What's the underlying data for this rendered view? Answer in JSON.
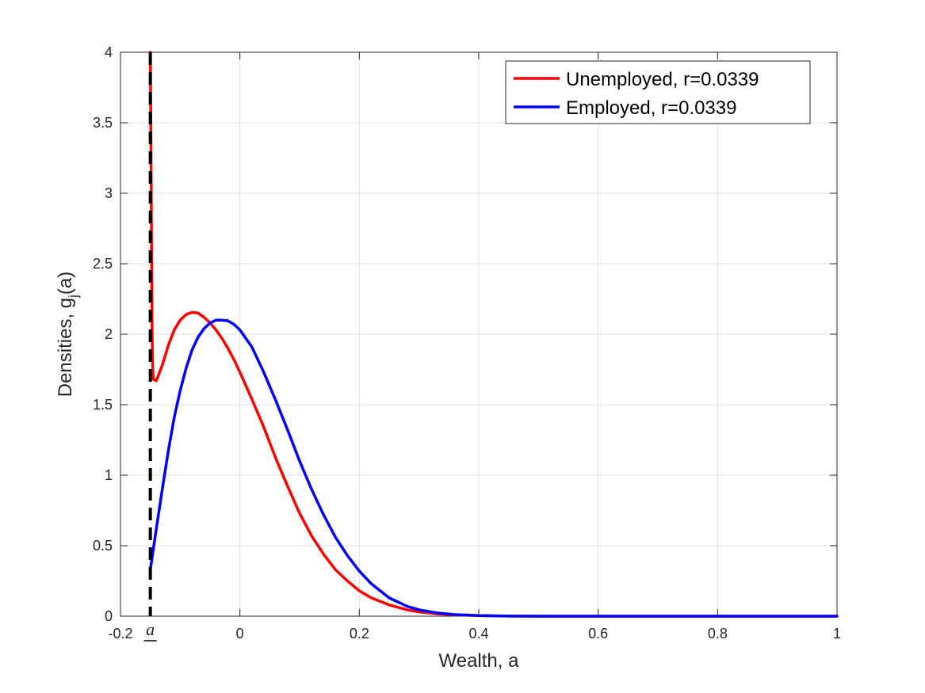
{
  "chart_data": {
    "type": "line",
    "title": "",
    "xlabel": "Wealth, a",
    "ylabel_main": "Densities, g",
    "ylabel_sub": "j",
    "ylabel_tail": "(a)",
    "xlim": [
      -0.2,
      1
    ],
    "ylim": [
      0,
      4
    ],
    "xticks": [
      -0.2,
      0,
      0.2,
      0.4,
      0.6,
      0.8,
      1
    ],
    "xtick_labels": [
      "-0.2",
      "0",
      "0.2",
      "0.4",
      "0.6",
      "0.8",
      "1"
    ],
    "yticks": [
      0,
      0.5,
      1,
      1.5,
      2,
      2.5,
      3,
      3.5,
      4
    ],
    "ytick_labels": [
      "0",
      "0.5",
      "1",
      "1.5",
      "2",
      "2.5",
      "3",
      "3.5",
      "4"
    ],
    "grid": true,
    "legend_position": "top-right",
    "borrowing_limit": {
      "x": -0.15,
      "label": "a",
      "style": "dashed",
      "color": "#000000"
    },
    "series": [
      {
        "name": "Unemployed, r=0.0339",
        "color": "#ff0000",
        "x": [
          -0.15,
          -0.149,
          -0.148,
          -0.147,
          -0.146,
          -0.145,
          -0.14,
          -0.13,
          -0.12,
          -0.11,
          -0.1,
          -0.09,
          -0.08,
          -0.07,
          -0.06,
          -0.05,
          -0.04,
          -0.03,
          -0.02,
          -0.01,
          0.0,
          0.02,
          0.04,
          0.06,
          0.08,
          0.1,
          0.12,
          0.14,
          0.16,
          0.18,
          0.2,
          0.22,
          0.25,
          0.28,
          0.3,
          0.33,
          0.36,
          0.4,
          0.45,
          0.5,
          0.6,
          0.7,
          0.8,
          0.9,
          1.0
        ],
        "y": [
          4.0,
          3.4,
          2.6,
          2.0,
          1.75,
          1.68,
          1.67,
          1.78,
          1.92,
          2.03,
          2.1,
          2.14,
          2.155,
          2.15,
          2.12,
          2.08,
          2.03,
          1.97,
          1.9,
          1.82,
          1.73,
          1.54,
          1.34,
          1.12,
          0.92,
          0.73,
          0.57,
          0.44,
          0.33,
          0.25,
          0.18,
          0.13,
          0.08,
          0.045,
          0.03,
          0.017,
          0.009,
          0.004,
          0.001,
          0.0,
          0.0,
          0.0,
          0.0,
          0.0,
          0.0
        ]
      },
      {
        "name": "Employed, r=0.0339",
        "color": "#0000ff",
        "x": [
          -0.15,
          -0.14,
          -0.13,
          -0.12,
          -0.11,
          -0.1,
          -0.09,
          -0.08,
          -0.07,
          -0.06,
          -0.05,
          -0.04,
          -0.03,
          -0.02,
          -0.01,
          0.0,
          0.02,
          0.04,
          0.06,
          0.08,
          0.1,
          0.12,
          0.14,
          0.16,
          0.18,
          0.2,
          0.22,
          0.25,
          0.28,
          0.3,
          0.33,
          0.36,
          0.4,
          0.45,
          0.5,
          0.6,
          0.7,
          0.8,
          0.9,
          1.0
        ],
        "y": [
          0.33,
          0.62,
          0.9,
          1.17,
          1.41,
          1.6,
          1.76,
          1.89,
          1.98,
          2.04,
          2.08,
          2.1,
          2.1,
          2.095,
          2.07,
          2.03,
          1.91,
          1.73,
          1.53,
          1.32,
          1.1,
          0.9,
          0.72,
          0.56,
          0.43,
          0.32,
          0.23,
          0.13,
          0.07,
          0.045,
          0.023,
          0.011,
          0.004,
          0.001,
          0.0,
          0.0,
          0.0,
          0.0,
          0.0,
          0.0
        ]
      }
    ]
  }
}
